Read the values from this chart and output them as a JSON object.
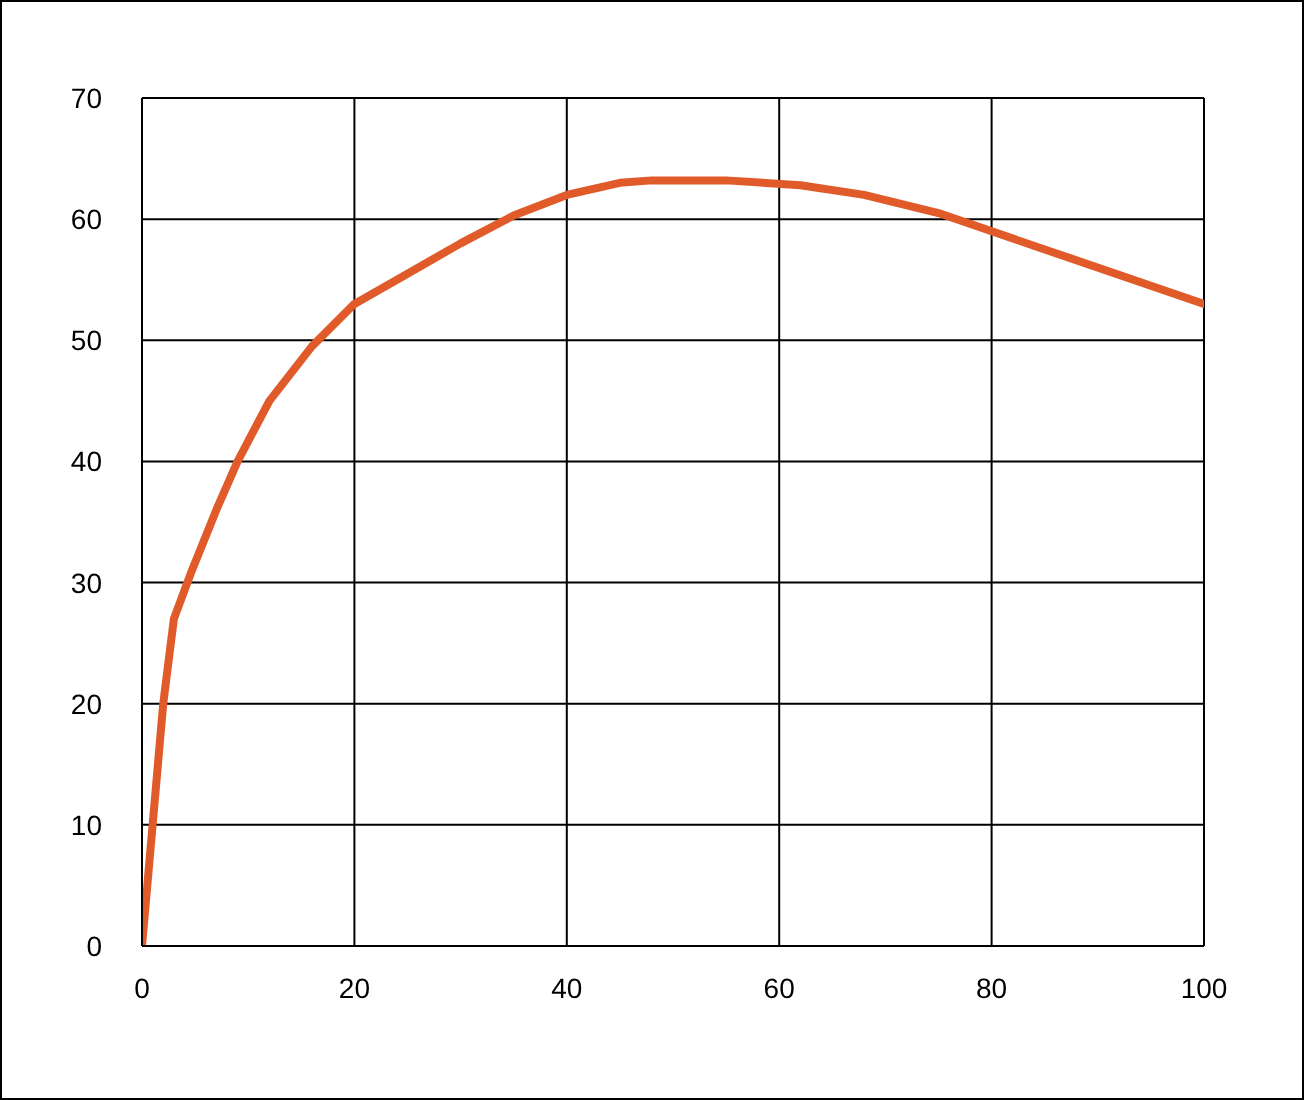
{
  "chart_data": {
    "type": "line",
    "x": [
      0,
      1,
      2,
      3,
      4.7,
      7,
      9,
      12,
      16,
      20,
      25,
      30,
      35,
      40,
      45,
      48,
      55,
      62,
      68,
      75,
      85,
      100
    ],
    "series": [
      {
        "color": "#e05a2a",
        "values": [
          0,
          10,
          20,
          27,
          31,
          36,
          40,
          45,
          49.5,
          53,
          55.5,
          58,
          60.3,
          62,
          63,
          63.2,
          63.2,
          62.8,
          62,
          60.5,
          57.5,
          53
        ]
      }
    ],
    "xlim": [
      0,
      100
    ],
    "xticks": [
      0,
      20,
      40,
      60,
      80,
      100
    ],
    "ylim": [
      0,
      70
    ],
    "yticks": [
      0,
      10,
      20,
      30,
      40,
      50,
      60,
      70
    ],
    "grid": true,
    "marker": "none",
    "line_style": "solid"
  }
}
